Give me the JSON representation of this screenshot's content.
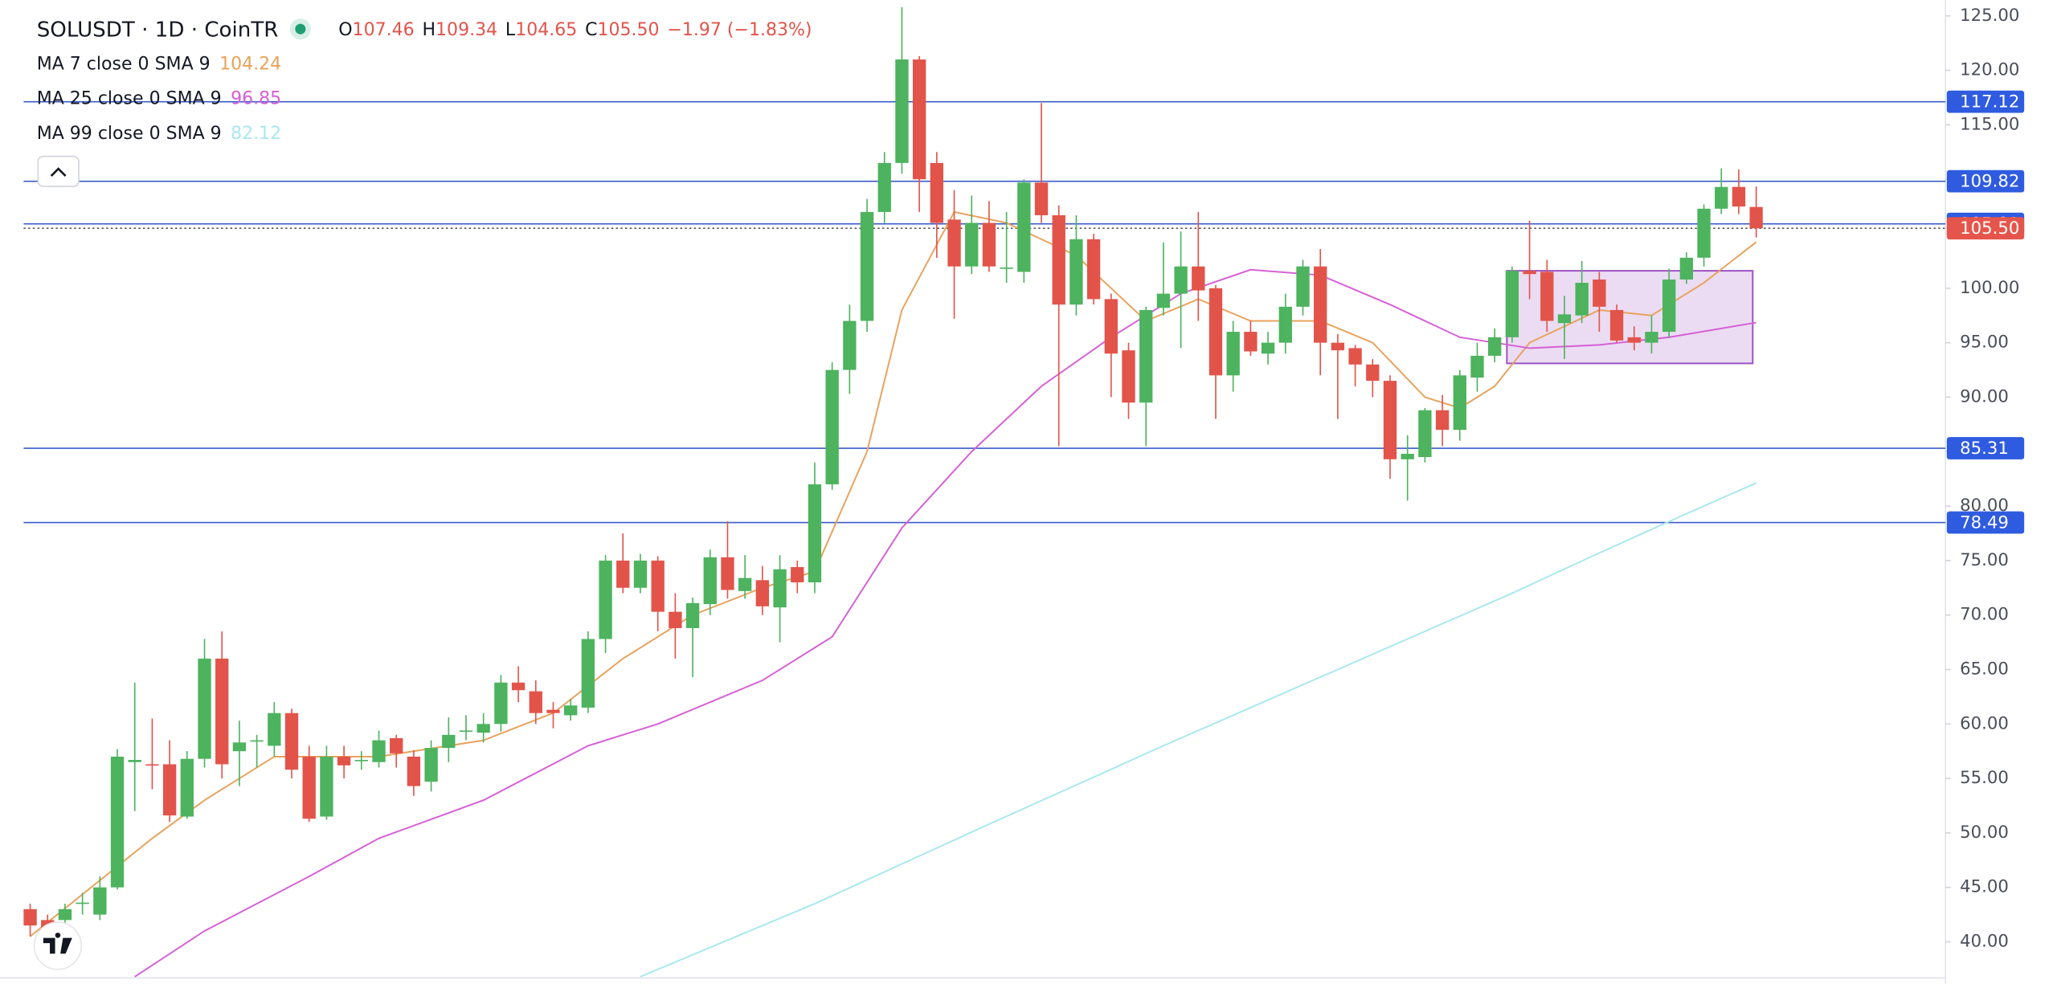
{
  "chart_data": {
    "type": "candlestick",
    "title": "SOLUSDT · 1D · CoinTR",
    "ohlc_header": {
      "labels": [
        "O",
        "H",
        "L",
        "C"
      ],
      "values": [
        "107.46",
        "109.34",
        "104.65",
        "105.50"
      ],
      "change": "−1.97 (−1.83%)"
    },
    "up_color": "#4db35e",
    "down_color": "#e2544a",
    "open": [
      43,
      42,
      42,
      43.5,
      42.5,
      45,
      56.5,
      56.3,
      56.3,
      51.5,
      56.8,
      66,
      57.5,
      58.4,
      58,
      61,
      57,
      51.5,
      57,
      56.6,
      56.5,
      58.7,
      57,
      54.7,
      57.8,
      59.3,
      59.2,
      60,
      63.8,
      63,
      61.3,
      60.8,
      61.5,
      67.8,
      75,
      72.5,
      75,
      70.3,
      68.8,
      71,
      75.3,
      72.2,
      73.2,
      70.7,
      74.4,
      73,
      82,
      92.5,
      97,
      107,
      111.5,
      121,
      111.5,
      106.3,
      102,
      106,
      101.8,
      101.5,
      109.7,
      106.7,
      98.5,
      104.5,
      99,
      94.3,
      89.5,
      98.2,
      99.5,
      102,
      100,
      92,
      96,
      94,
      95,
      98.3,
      102,
      95,
      94.5,
      93,
      91.5,
      84.3,
      84.5,
      88.8,
      87,
      91.8,
      93.8,
      95.5,
      101.6,
      101.5,
      96.8,
      97.5,
      100.8,
      98,
      95.5,
      95,
      96,
      100.8,
      102.8,
      107.3,
      109.3,
      107.46
    ],
    "high": [
      43.5,
      42.5,
      43.5,
      44.5,
      46,
      57.7,
      63.8,
      60.5,
      58.5,
      57.5,
      67.8,
      68.5,
      60.3,
      59,
      62,
      61.4,
      58,
      58,
      58,
      57.5,
      59.4,
      59,
      57.6,
      58.5,
      60.6,
      60.8,
      61,
      64.5,
      65.3,
      64,
      62,
      62.3,
      68.5,
      75.5,
      77.5,
      75.6,
      75.4,
      72,
      71.6,
      76,
      78.6,
      75.5,
      74.5,
      75.5,
      75,
      84,
      93.2,
      98.5,
      108.2,
      112.5,
      125.8,
      121.3,
      112.5,
      109,
      108.5,
      108,
      107,
      110,
      117,
      107.6,
      106.7,
      105,
      99.5,
      95,
      98.3,
      104.2,
      105.2,
      107,
      100.3,
      97,
      97,
      96,
      99.5,
      102.6,
      103.6,
      95.8,
      94.8,
      93.5,
      92,
      86.5,
      89,
      90.2,
      92.5,
      95,
      96.3,
      102,
      106.2,
      102.6,
      99.3,
      102.5,
      101.5,
      98.5,
      96.5,
      97.5,
      101.8,
      103.3,
      107.7,
      111,
      110.9,
      109.34
    ],
    "low": [
      40.5,
      40.8,
      41.5,
      42.5,
      42,
      44.8,
      52,
      54,
      51,
      51.3,
      56,
      55,
      54.3,
      56,
      57,
      55,
      51,
      51.2,
      55,
      55.8,
      56,
      56,
      53.4,
      53.8,
      56.5,
      58.5,
      58.3,
      59.3,
      62,
      60,
      59.6,
      60.3,
      61,
      66.5,
      72,
      72,
      68.5,
      66,
      64.3,
      70,
      71.5,
      71.5,
      70,
      67.5,
      72,
      72,
      81.5,
      90.3,
      96,
      106,
      110.5,
      107,
      102.8,
      97.2,
      101.3,
      101.5,
      100.5,
      100.5,
      106,
      85.5,
      97.5,
      98.5,
      90,
      88,
      85.5,
      97.5,
      94.5,
      97,
      88,
      90.5,
      93.8,
      93,
      94,
      97.5,
      92,
      88,
      91,
      90,
      82.5,
      80.5,
      84,
      85.5,
      86,
      90.5,
      93.2,
      95,
      99,
      96,
      93.5,
      96.8,
      96,
      95,
      94.3,
      94,
      95.5,
      100.4,
      102,
      106.8,
      106.8,
      104.65
    ],
    "close": [
      41.5,
      41.3,
      43,
      43.6,
      45,
      57,
      56.7,
      56.2,
      51.6,
      56.8,
      66,
      56.3,
      58.3,
      58.5,
      61,
      55.8,
      51.3,
      57,
      56.2,
      56.7,
      58.5,
      57.3,
      54.3,
      57.8,
      59,
      59.4,
      60,
      63.8,
      63.1,
      61,
      61,
      61.7,
      67.8,
      75,
      72.5,
      75,
      70.3,
      68.8,
      71.1,
      75.3,
      72.3,
      73.4,
      70.8,
      74.2,
      73,
      82,
      92.5,
      97,
      107,
      111.5,
      121,
      110,
      106,
      102,
      106,
      102,
      101.9,
      109.7,
      106.7,
      98.5,
      104.5,
      99,
      94,
      89.5,
      98,
      99.5,
      102,
      99.8,
      92,
      96,
      94.2,
      95,
      98.3,
      102,
      95,
      94.3,
      93,
      91.5,
      84.3,
      84.8,
      88.8,
      87,
      92,
      93.8,
      95.5,
      101.6,
      101.3,
      97,
      97.6,
      100.5,
      98.3,
      95.2,
      95,
      96,
      100.8,
      102.8,
      107.3,
      109.3,
      107.5,
      105.5
    ],
    "series": [
      {
        "name": "MA 7 close 0 SMA 9",
        "color": "#e8a25c",
        "x": [
          0,
          7,
          10,
          14,
          20,
          26,
          30,
          34,
          38,
          42,
          45,
          48,
          50,
          53,
          56,
          60,
          64,
          67,
          70,
          74,
          77,
          80,
          82,
          84,
          86,
          90,
          93,
          96,
          99
        ],
        "values": [
          40.5,
          49.5,
          53,
          57,
          57,
          58.5,
          61,
          66,
          70,
          72.5,
          74,
          85,
          98,
          107,
          106,
          103,
          97,
          99,
          97,
          97,
          95,
          90,
          89,
          91,
          95,
          98,
          97.5,
          100.5,
          104.24
        ]
      },
      {
        "name": "MA 25 close 0 SMA 9",
        "color": "#d65fd6",
        "x": [
          6,
          10,
          16,
          20,
          26,
          32,
          36,
          42,
          46,
          50,
          54,
          58,
          62,
          66,
          70,
          74,
          78,
          82,
          86,
          90,
          94,
          99
        ],
        "values": [
          36.8,
          41,
          46,
          49.5,
          53,
          58,
          60,
          64,
          68,
          78,
          85,
          91,
          95.5,
          99.5,
          101.7,
          101.2,
          98.5,
          95.5,
          94.5,
          94.8,
          95.5,
          96.85
        ]
      },
      {
        "name": "MA 99 close 0 SMA 9",
        "color": "#a8e8ee",
        "x": [
          35,
          45,
          55,
          60,
          65,
          70,
          75,
          80,
          85,
          90,
          95,
          99
        ],
        "values": [
          36.8,
          43.5,
          50.8,
          54.4,
          58,
          61.5,
          65,
          68.5,
          72,
          75.7,
          79.3,
          82.12
        ]
      }
    ],
    "ylim": [
      36.75,
      126.44
    ],
    "yticks": [
      {
        "value": 40,
        "label": "40.00"
      },
      {
        "value": 45,
        "label": "45.00"
      },
      {
        "value": 50,
        "label": "50.00"
      },
      {
        "value": 55,
        "label": "55.00"
      },
      {
        "value": 60,
        "label": "60.00"
      },
      {
        "value": 65,
        "label": "65.00"
      },
      {
        "value": 70,
        "label": "70.00"
      },
      {
        "value": 75,
        "label": "75.00"
      },
      {
        "value": 80,
        "label": "80.00"
      },
      {
        "value": 85,
        "label": "85.00"
      },
      {
        "value": 90,
        "label": "90.00"
      },
      {
        "value": 95,
        "label": "95.00"
      },
      {
        "value": 100,
        "label": "100.00"
      },
      {
        "value": 105,
        "label": "105.00"
      },
      {
        "value": 110,
        "label": "110.00"
      },
      {
        "value": 115,
        "label": "115.00"
      },
      {
        "value": 120,
        "label": "120.00"
      },
      {
        "value": 125,
        "label": "125.00"
      }
    ],
    "hlines": {
      "color": "#3a5bc7",
      "values": [
        117.12,
        109.82,
        105.91,
        85.31,
        78.49
      ]
    },
    "last_price": {
      "value": 105.5,
      "label": "105.50",
      "color": "#e5554b"
    },
    "rectangle": {
      "x": [
        84.7,
        98.8
      ],
      "y": [
        93.1,
        101.6
      ],
      "color": "#9c4fc4"
    }
  }
}
